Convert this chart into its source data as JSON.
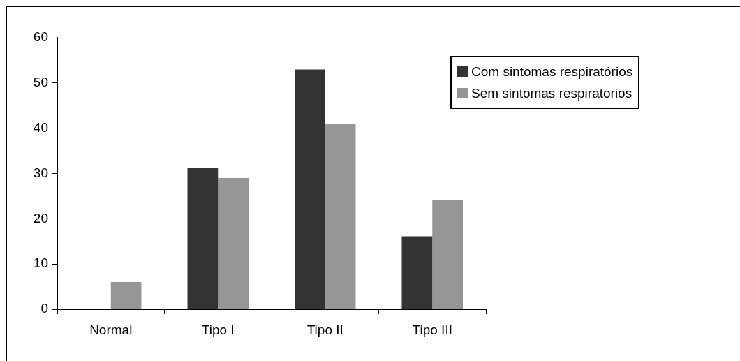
{
  "chart_data": {
    "type": "bar",
    "categories": [
      "Normal",
      "Tipo I",
      "Tipo II",
      "Tipo III"
    ],
    "series": [
      {
        "name": "Com sintomas respiratórios",
        "color": "#333333",
        "values": [
          0,
          31.2,
          53,
          16.1
        ]
      },
      {
        "name": "Sem sintomas respiratorios",
        "color": "#969696",
        "values": [
          6,
          29,
          41,
          24.1
        ]
      }
    ],
    "ylim": [
      0,
      60
    ],
    "yticks": [
      0,
      10,
      20,
      30,
      40,
      50,
      60
    ],
    "grid": false,
    "legend": "right"
  }
}
